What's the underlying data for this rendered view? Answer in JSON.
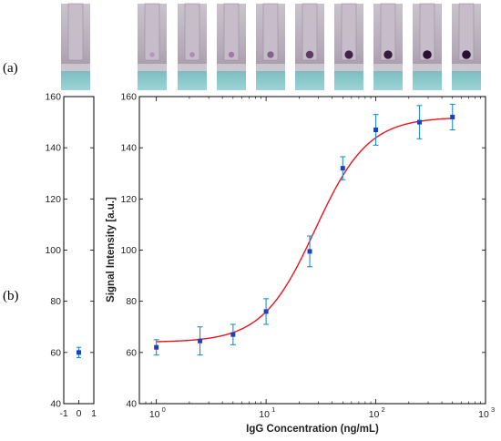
{
  "panel_labels": {
    "a": "(a)",
    "b": "(b)"
  },
  "strip_images": {
    "count": 10,
    "description_colors": {
      "pad": "#b6aeb8",
      "well": "#7fc6c9"
    },
    "spot_intensity": [
      0,
      0.05,
      0.15,
      0.3,
      0.5,
      0.75,
      0.9,
      0.95,
      1.0,
      1.0
    ]
  },
  "chart_data": [
    {
      "type": "scatter",
      "x": [
        0
      ],
      "y": [
        60
      ],
      "y_err": [
        2
      ],
      "xlim": [
        -1,
        1
      ],
      "ylim": [
        40,
        160
      ],
      "x_ticks": [
        -1,
        0,
        1
      ],
      "x_tick_labels": [
        "-1",
        "0",
        "1"
      ],
      "y_ticks": [
        40,
        60,
        80,
        100,
        120,
        140,
        160
      ],
      "y_tick_labels": [
        "40",
        "60",
        "80",
        "100",
        "120",
        "140",
        "160"
      ],
      "marker_color": "#1f3fbf",
      "errorbar_color": "#1f8fd0"
    },
    {
      "type": "scatter",
      "xscale": "log",
      "xlabel": "IgG Concentration (ng/mL)",
      "ylabel": "Signal Intensity [a.u.]",
      "xlim": [
        0.7,
        1000
      ],
      "ylim": [
        40,
        160
      ],
      "x_ticks": [
        1,
        10,
        100,
        1000
      ],
      "x_tick_labels": [
        "10",
        "10",
        "10",
        "10"
      ],
      "x_tick_exponents": [
        "0",
        "1",
        "2",
        "3"
      ],
      "y_ticks": [
        40,
        60,
        80,
        100,
        120,
        140,
        160
      ],
      "y_tick_labels": [
        "40",
        "60",
        "80",
        "100",
        "120",
        "140",
        "160"
      ],
      "series": [
        {
          "x": [
            1,
            2.5,
            5,
            10,
            25,
            50,
            100,
            250,
            500
          ],
          "y": [
            62,
            64.5,
            67,
            76,
            99.5,
            132,
            147,
            150,
            152
          ],
          "y_err": [
            3,
            5.5,
            4,
            5,
            6,
            4.5,
            6,
            6.5,
            5
          ]
        }
      ],
      "fit_curve": {
        "model": "4PL",
        "bottom": 64,
        "top": 152,
        "ec50": 28,
        "hill": 1.8
      },
      "marker_color": "#1f3fbf",
      "errorbar_color": "#1f8fd0",
      "fit_color": "#e8141e",
      "grid": false
    }
  ]
}
